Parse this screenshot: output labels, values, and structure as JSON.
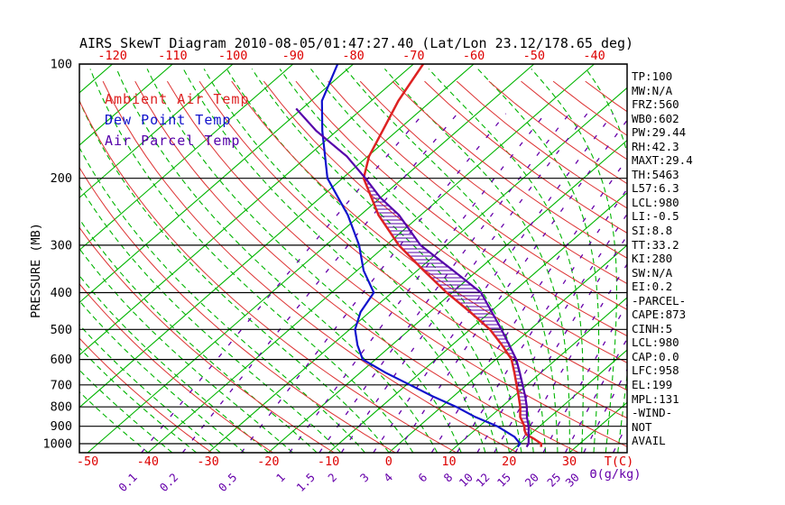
{
  "title": "AIRS SkewT Diagram 2010-08-05/01:47:27.40 (Lat/Lon 23.12/178.65 deg)",
  "legend": [
    {
      "label": "Ambient Air Temp",
      "color": "#dd2222"
    },
    {
      "label": "Dew Point Temp",
      "color": "#1111cc"
    },
    {
      "label": "Air Parcel Temp",
      "color": "#5500aa"
    }
  ],
  "axes": {
    "ylabel": "PRESSURE (MB)",
    "pressure_ticks": [
      100,
      200,
      300,
      400,
      500,
      600,
      700,
      800,
      900,
      1000
    ],
    "top_temp_ticks": [
      -120,
      -110,
      -100,
      -90,
      -80,
      -70,
      -60,
      -50,
      -40
    ],
    "bottom_temp_ticks": [
      -50,
      -40,
      -30,
      -20,
      -10,
      0,
      10,
      20,
      30
    ],
    "temp_unit_label": "T(C)",
    "mixing_ratio_unit_label": "Θ(g/kg)",
    "mixing_ratio_ticks": [
      0.1,
      0.2,
      0.5,
      1,
      1.5,
      2,
      3,
      4,
      6,
      8,
      10,
      12,
      15,
      20,
      25,
      30
    ]
  },
  "stats_panel": [
    "TP:100",
    "MW:N/A",
    "FRZ:560",
    "WB0:602",
    "PW:29.44",
    "RH:42.3",
    "MAXT:29.4",
    "TH:5463",
    "L57:6.3",
    "LCL:980",
    "LI:-0.5",
    "SI:8.8",
    "TT:33.2",
    "KI:280",
    "SW:N/A",
    "EI:0.2",
    "-PARCEL-",
    "CAPE:873",
    "CINH:5",
    "LCL:980",
    "CAP:0.0",
    "LFC:958",
    "EL:199",
    "MPL:131",
    "-WIND-",
    "NOT",
    "AVAIL"
  ],
  "chart_data": {
    "type": "line",
    "title": "AIRS SkewT Diagram 2010-08-05/01:47:27.40 (Lat/Lon 23.12/178.65 deg)",
    "xlabel": "T(C)",
    "ylabel": "PRESSURE (MB)",
    "x_range_c": [
      -130,
      45
    ],
    "pressure_range_mb": [
      100,
      1055
    ],
    "grid": "skew-t log-p",
    "legend_position": "upper-left-inside",
    "series": [
      {
        "name": "Ambient Air Temp",
        "color": "#dd2222",
        "style": "solid",
        "points_p_t": [
          [
            1020,
            24.2
          ],
          [
            1000,
            23.6
          ],
          [
            970,
            21.4
          ],
          [
            945,
            19.3
          ],
          [
            920,
            18.2
          ],
          [
            900,
            17.5
          ],
          [
            850,
            15.0
          ],
          [
            800,
            13.1
          ],
          [
            750,
            10.8
          ],
          [
            700,
            8.3
          ],
          [
            650,
            5.6
          ],
          [
            600,
            2.6
          ],
          [
            550,
            -1.7
          ],
          [
            500,
            -6.7
          ],
          [
            450,
            -13.3
          ],
          [
            400,
            -20.9
          ],
          [
            350,
            -28.9
          ],
          [
            300,
            -37.9
          ],
          [
            250,
            -47.0
          ],
          [
            200,
            -56.5
          ],
          [
            175,
            -59.8
          ],
          [
            150,
            -62.4
          ],
          [
            125,
            -65.5
          ],
          [
            100,
            -68.4
          ]
        ]
      },
      {
        "name": "Dew Point Temp",
        "color": "#1111cc",
        "style": "solid",
        "points_p_t": [
          [
            1020,
            20.3
          ],
          [
            1000,
            20.1
          ],
          [
            960,
            17.9
          ],
          [
            900,
            13.0
          ],
          [
            850,
            7.5
          ],
          [
            800,
            2.5
          ],
          [
            750,
            -3.5
          ],
          [
            700,
            -9.4
          ],
          [
            650,
            -15.8
          ],
          [
            600,
            -22.1
          ],
          [
            550,
            -25.7
          ],
          [
            500,
            -29.1
          ],
          [
            450,
            -31.5
          ],
          [
            400,
            -33.0
          ],
          [
            350,
            -38.9
          ],
          [
            300,
            -44.5
          ],
          [
            250,
            -52.1
          ],
          [
            200,
            -62.5
          ],
          [
            150,
            -72.4
          ],
          [
            125,
            -78.2
          ],
          [
            100,
            -82.6
          ]
        ]
      },
      {
        "name": "Air Parcel Temp",
        "color": "#5500aa",
        "style": "solid",
        "points_p_t": [
          [
            1020,
            21.8
          ],
          [
            1000,
            21.5
          ],
          [
            950,
            19.9
          ],
          [
            900,
            18.2
          ],
          [
            850,
            16.1
          ],
          [
            800,
            14.2
          ],
          [
            750,
            11.9
          ],
          [
            700,
            9.3
          ],
          [
            650,
            6.5
          ],
          [
            600,
            3.4
          ],
          [
            550,
            -0.5
          ],
          [
            500,
            -4.8
          ],
          [
            450,
            -9.7
          ],
          [
            400,
            -15.2
          ],
          [
            350,
            -24.0
          ],
          [
            300,
            -34.3
          ],
          [
            250,
            -43.6
          ],
          [
            225,
            -50.0
          ],
          [
            200,
            -56.2
          ],
          [
            175,
            -63.5
          ],
          [
            150,
            -73.4
          ],
          [
            131,
            -81.0
          ]
        ]
      }
    ],
    "cape_hatch": {
      "between": [
        "Air Parcel Temp",
        "Ambient Air Temp"
      ],
      "lfc_mb": 958,
      "el_mb": 199,
      "color": "#5500aa"
    },
    "background": {
      "isotherms_c": {
        "from": -160,
        "to": 40,
        "step": 10,
        "color": "#00b400",
        "style": "solid"
      },
      "dry_adiabats_theta_k": {
        "from": 240,
        "to": 440,
        "step": 10,
        "color": "#dd3333",
        "style": "solid"
      },
      "moist_adiabats_surface_c": {
        "cold_from": -40,
        "cold_to": 16,
        "cold_step": 4,
        "warm_from": 18,
        "warm_to": 40,
        "warm_step": 2,
        "color": "#00b400",
        "style": "dashed"
      },
      "mixing_ratio_g_kg": {
        "values": [
          0.1,
          0.2,
          0.5,
          1,
          1.5,
          2,
          3,
          4,
          6,
          8,
          10,
          12,
          15,
          20,
          25,
          30,
          40
        ],
        "color": "#6600aa",
        "style": "dashed"
      },
      "pressure_lines_mb": [
        100,
        200,
        300,
        400,
        500,
        600,
        700,
        800,
        900,
        1000
      ]
    },
    "colors": {
      "frame": "#000000",
      "tick_label_temp": "#dd0000",
      "tick_label_mixing": "#6600aa",
      "tick_label_pressure": "#000000"
    }
  }
}
